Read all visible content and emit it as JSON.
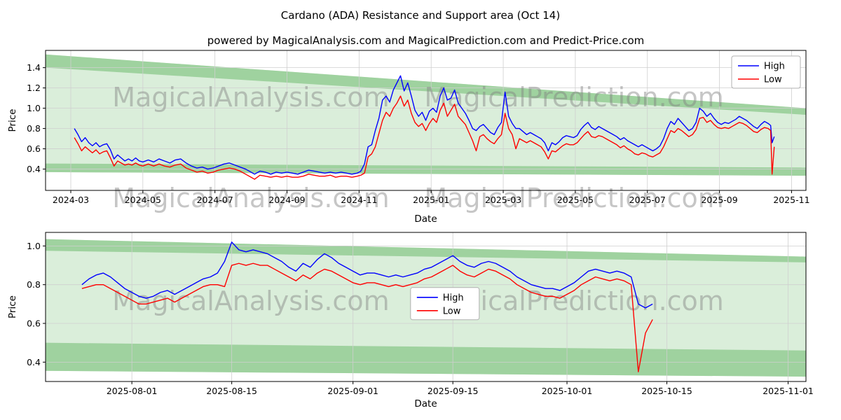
{
  "page": {
    "title": "Cardano (ADA) Resistance and Support area (Oct 14)",
    "subtitle": "powered by MagicalAnalysis.com and MagicalPrediction.com and Predict-Price.com"
  },
  "watermarks": [
    "MagicalAnalysis.com",
    "MagicalPrediction.com"
  ],
  "colors": {
    "high": "#0000ff",
    "low": "#ff0000",
    "band_dark": "#9fd29f",
    "band_light": "#daeeda",
    "grid": "#cfcfcf",
    "axis": "#000000",
    "text": "#000000",
    "watermark": "rgba(128,128,128,0.45)",
    "legend_border": "#b0b0b0"
  },
  "chart_data": [
    {
      "type": "line",
      "title": "",
      "xlabel": "Date",
      "ylabel": "Price",
      "xlim": [
        -0.7,
        20.4
      ],
      "ylim": [
        0.19,
        1.57
      ],
      "grid": true,
      "xticks": {
        "values": [
          0,
          2,
          4,
          6,
          8,
          10,
          12,
          14,
          16,
          18,
          20
        ],
        "labels": [
          "2024-03",
          "2024-05",
          "2024-07",
          "2024-09",
          "2024-11",
          "2025-01",
          "2025-03",
          "2025-05",
          "2025-07",
          "2025-09",
          "2025-11"
        ]
      },
      "yticks": [
        0.4,
        0.6,
        0.8,
        1.0,
        1.2,
        1.4
      ],
      "legend": {
        "labels": [
          "High",
          "Low"
        ],
        "loc": "upper-right"
      },
      "watermark_rows": [
        {
          "fy": 0.4
        },
        {
          "fy": 1.12
        }
      ],
      "bands": {
        "resistance": {
          "x": [
            -0.7,
            20.4
          ],
          "top": [
            1.53,
            1.0
          ],
          "bottom": [
            1.4,
            0.935
          ]
        },
        "support": {
          "x": [
            -0.7,
            20.4
          ],
          "top": [
            0.455,
            0.415
          ],
          "bottom": [
            0.37,
            0.335
          ]
        }
      },
      "x": [
        0.1,
        0.2,
        0.3,
        0.4,
        0.5,
        0.6,
        0.7,
        0.8,
        0.9,
        1.0,
        1.1,
        1.2,
        1.3,
        1.4,
        1.5,
        1.6,
        1.7,
        1.8,
        1.9,
        2.0,
        2.15,
        2.3,
        2.45,
        2.6,
        2.75,
        2.9,
        3.05,
        3.2,
        3.35,
        3.5,
        3.65,
        3.8,
        3.95,
        4.1,
        4.25,
        4.4,
        4.55,
        4.7,
        4.85,
        5.0,
        5.1,
        5.25,
        5.4,
        5.55,
        5.7,
        5.85,
        6.0,
        6.15,
        6.3,
        6.45,
        6.6,
        6.75,
        6.9,
        7.05,
        7.2,
        7.35,
        7.5,
        7.65,
        7.8,
        7.95,
        8.05,
        8.15,
        8.25,
        8.35,
        8.45,
        8.55,
        8.65,
        8.75,
        8.85,
        8.95,
        9.05,
        9.15,
        9.25,
        9.35,
        9.45,
        9.55,
        9.65,
        9.75,
        9.85,
        9.95,
        10.05,
        10.15,
        10.25,
        10.35,
        10.45,
        10.55,
        10.65,
        10.75,
        10.85,
        10.95,
        11.05,
        11.15,
        11.25,
        11.35,
        11.45,
        11.55,
        11.65,
        11.75,
        11.85,
        11.95,
        12.05,
        12.15,
        12.25,
        12.35,
        12.45,
        12.55,
        12.65,
        12.75,
        12.85,
        12.95,
        13.05,
        13.15,
        13.25,
        13.35,
        13.45,
        13.55,
        13.65,
        13.75,
        13.85,
        13.95,
        14.05,
        14.15,
        14.25,
        14.35,
        14.45,
        14.55,
        14.65,
        14.75,
        14.85,
        14.95,
        15.05,
        15.15,
        15.25,
        15.35,
        15.45,
        15.55,
        15.65,
        15.75,
        15.85,
        15.95,
        16.05,
        16.15,
        16.25,
        16.35,
        16.45,
        16.55,
        16.65,
        16.75,
        16.85,
        16.95,
        17.05,
        17.15,
        17.25,
        17.35,
        17.45,
        17.55,
        17.65,
        17.75,
        17.85,
        17.95,
        18.05,
        18.15,
        18.25,
        18.35,
        18.45,
        18.55,
        18.65,
        18.75,
        18.85,
        18.95,
        19.05,
        19.15,
        19.25,
        19.35,
        19.42,
        19.46,
        19.52
      ],
      "series": [
        {
          "name": "High",
          "color_key": "high",
          "values": [
            0.8,
            0.74,
            0.67,
            0.71,
            0.66,
            0.63,
            0.66,
            0.62,
            0.64,
            0.65,
            0.59,
            0.5,
            0.54,
            0.51,
            0.48,
            0.5,
            0.48,
            0.51,
            0.48,
            0.47,
            0.49,
            0.47,
            0.5,
            0.48,
            0.46,
            0.49,
            0.5,
            0.46,
            0.43,
            0.41,
            0.42,
            0.4,
            0.41,
            0.43,
            0.45,
            0.46,
            0.44,
            0.42,
            0.4,
            0.37,
            0.35,
            0.38,
            0.37,
            0.35,
            0.37,
            0.36,
            0.37,
            0.36,
            0.35,
            0.37,
            0.39,
            0.38,
            0.37,
            0.36,
            0.37,
            0.36,
            0.37,
            0.36,
            0.35,
            0.36,
            0.38,
            0.45,
            0.62,
            0.64,
            0.78,
            0.9,
            1.08,
            1.12,
            1.06,
            1.18,
            1.25,
            1.32,
            1.17,
            1.25,
            1.12,
            0.98,
            0.92,
            0.96,
            0.88,
            0.97,
            1.0,
            0.96,
            1.12,
            1.2,
            1.08,
            1.1,
            1.18,
            1.05,
            1.0,
            0.95,
            0.88,
            0.8,
            0.78,
            0.82,
            0.84,
            0.8,
            0.76,
            0.74,
            0.81,
            0.86,
            1.16,
            0.92,
            0.85,
            0.8,
            0.8,
            0.77,
            0.74,
            0.76,
            0.74,
            0.72,
            0.7,
            0.66,
            0.58,
            0.66,
            0.64,
            0.67,
            0.71,
            0.73,
            0.72,
            0.71,
            0.73,
            0.79,
            0.83,
            0.86,
            0.81,
            0.79,
            0.82,
            0.8,
            0.78,
            0.76,
            0.74,
            0.72,
            0.69,
            0.71,
            0.68,
            0.66,
            0.64,
            0.62,
            0.64,
            0.62,
            0.6,
            0.58,
            0.6,
            0.63,
            0.7,
            0.8,
            0.87,
            0.84,
            0.9,
            0.86,
            0.82,
            0.78,
            0.8,
            0.86,
            1.0,
            0.97,
            0.92,
            0.95,
            0.9,
            0.86,
            0.84,
            0.86,
            0.85,
            0.87,
            0.89,
            0.92,
            0.9,
            0.88,
            0.85,
            0.82,
            0.8,
            0.84,
            0.87,
            0.85,
            0.83,
            0.66,
            0.72
          ]
        },
        {
          "name": "Low",
          "color_key": "low",
          "values": [
            0.71,
            0.65,
            0.58,
            0.62,
            0.59,
            0.56,
            0.59,
            0.55,
            0.57,
            0.58,
            0.51,
            0.43,
            0.48,
            0.46,
            0.44,
            0.45,
            0.44,
            0.46,
            0.44,
            0.43,
            0.45,
            0.43,
            0.45,
            0.43,
            0.42,
            0.44,
            0.45,
            0.41,
            0.39,
            0.37,
            0.38,
            0.36,
            0.37,
            0.39,
            0.4,
            0.41,
            0.4,
            0.38,
            0.35,
            0.32,
            0.3,
            0.34,
            0.33,
            0.32,
            0.33,
            0.32,
            0.33,
            0.32,
            0.32,
            0.33,
            0.35,
            0.34,
            0.33,
            0.33,
            0.34,
            0.32,
            0.33,
            0.33,
            0.32,
            0.33,
            0.34,
            0.36,
            0.52,
            0.55,
            0.62,
            0.75,
            0.88,
            0.96,
            0.92,
            1.0,
            1.05,
            1.12,
            1.02,
            1.08,
            0.95,
            0.86,
            0.82,
            0.85,
            0.78,
            0.85,
            0.9,
            0.86,
            0.98,
            1.05,
            0.92,
            0.98,
            1.04,
            0.92,
            0.88,
            0.84,
            0.76,
            0.68,
            0.58,
            0.72,
            0.74,
            0.7,
            0.67,
            0.65,
            0.7,
            0.74,
            0.95,
            0.8,
            0.74,
            0.6,
            0.7,
            0.68,
            0.66,
            0.68,
            0.66,
            0.64,
            0.62,
            0.57,
            0.5,
            0.58,
            0.57,
            0.6,
            0.63,
            0.65,
            0.64,
            0.64,
            0.66,
            0.7,
            0.74,
            0.77,
            0.72,
            0.71,
            0.73,
            0.72,
            0.7,
            0.68,
            0.66,
            0.64,
            0.61,
            0.63,
            0.6,
            0.58,
            0.55,
            0.54,
            0.56,
            0.55,
            0.53,
            0.52,
            0.54,
            0.56,
            0.62,
            0.7,
            0.78,
            0.76,
            0.8,
            0.78,
            0.75,
            0.72,
            0.74,
            0.79,
            0.9,
            0.91,
            0.86,
            0.88,
            0.84,
            0.81,
            0.8,
            0.81,
            0.8,
            0.82,
            0.84,
            0.86,
            0.85,
            0.83,
            0.8,
            0.77,
            0.76,
            0.79,
            0.81,
            0.8,
            0.78,
            0.35,
            0.62
          ]
        }
      ]
    },
    {
      "type": "line",
      "title": "",
      "xlabel": "Date",
      "ylabel": "Price",
      "xlim": [
        -0.1,
        106.5
      ],
      "ylim": [
        0.3,
        1.07
      ],
      "grid": true,
      "xticks": {
        "values": [
          12,
          26,
          43,
          57,
          73,
          87,
          104
        ],
        "labels": [
          "2025-08-01",
          "2025-08-15",
          "2025-09-01",
          "2025-09-15",
          "2025-10-01",
          "2025-10-15",
          "2025-11-01"
        ]
      },
      "yticks": [
        0.4,
        0.6,
        0.8,
        1.0
      ],
      "legend": {
        "labels": [
          "High",
          "Low"
        ],
        "loc": "fraction",
        "fx": 0.48,
        "fy": 0.37
      },
      "watermark_rows": [
        {
          "fy": 0.52
        }
      ],
      "bands": {
        "resistance": {
          "x": [
            -0.1,
            106.5
          ],
          "top": [
            1.035,
            0.945
          ],
          "bottom": [
            0.975,
            0.915
          ]
        },
        "support": {
          "x": [
            -0.1,
            106.5
          ],
          "top": [
            0.5,
            0.46
          ],
          "bottom": [
            0.355,
            0.325
          ]
        }
      },
      "x": [
        5,
        6,
        7,
        8,
        9,
        10,
        11,
        12,
        13,
        14,
        15,
        16,
        17,
        18,
        19,
        20,
        21,
        22,
        23,
        24,
        25,
        26,
        27,
        28,
        29,
        30,
        31,
        32,
        33,
        34,
        35,
        36,
        37,
        38,
        39,
        40,
        41,
        42,
        43,
        44,
        45,
        46,
        47,
        48,
        49,
        50,
        51,
        52,
        53,
        54,
        55,
        56,
        57,
        58,
        59,
        60,
        61,
        62,
        63,
        64,
        65,
        66,
        67,
        68,
        69,
        70,
        71,
        72,
        73,
        74,
        75,
        76,
        77,
        78,
        79,
        80,
        81,
        82,
        83,
        84,
        85
      ],
      "series": [
        {
          "name": "High",
          "color_key": "high",
          "values": [
            0.8,
            0.83,
            0.85,
            0.86,
            0.84,
            0.81,
            0.78,
            0.76,
            0.74,
            0.73,
            0.74,
            0.76,
            0.77,
            0.75,
            0.77,
            0.79,
            0.81,
            0.83,
            0.84,
            0.86,
            0.92,
            1.02,
            0.98,
            0.97,
            0.98,
            0.97,
            0.96,
            0.94,
            0.92,
            0.89,
            0.87,
            0.91,
            0.89,
            0.93,
            0.96,
            0.94,
            0.91,
            0.89,
            0.87,
            0.85,
            0.86,
            0.86,
            0.85,
            0.84,
            0.85,
            0.84,
            0.85,
            0.86,
            0.88,
            0.89,
            0.91,
            0.93,
            0.95,
            0.92,
            0.9,
            0.89,
            0.91,
            0.92,
            0.91,
            0.89,
            0.87,
            0.84,
            0.82,
            0.8,
            0.79,
            0.78,
            0.78,
            0.77,
            0.79,
            0.81,
            0.84,
            0.87,
            0.88,
            0.87,
            0.86,
            0.87,
            0.86,
            0.84,
            0.7,
            0.68,
            0.7
          ]
        },
        {
          "name": "Low",
          "color_key": "low",
          "values": [
            0.78,
            0.79,
            0.8,
            0.8,
            0.78,
            0.76,
            0.74,
            0.72,
            0.7,
            0.7,
            0.71,
            0.72,
            0.73,
            0.71,
            0.73,
            0.75,
            0.77,
            0.79,
            0.8,
            0.8,
            0.79,
            0.9,
            0.91,
            0.9,
            0.91,
            0.9,
            0.9,
            0.88,
            0.86,
            0.84,
            0.82,
            0.85,
            0.83,
            0.86,
            0.88,
            0.87,
            0.85,
            0.83,
            0.81,
            0.8,
            0.81,
            0.81,
            0.8,
            0.79,
            0.8,
            0.79,
            0.8,
            0.81,
            0.83,
            0.84,
            0.86,
            0.88,
            0.9,
            0.87,
            0.85,
            0.84,
            0.86,
            0.88,
            0.87,
            0.85,
            0.83,
            0.8,
            0.78,
            0.76,
            0.75,
            0.74,
            0.74,
            0.73,
            0.75,
            0.77,
            0.8,
            0.82,
            0.84,
            0.83,
            0.82,
            0.83,
            0.82,
            0.8,
            0.35,
            0.55,
            0.62
          ]
        }
      ]
    }
  ]
}
